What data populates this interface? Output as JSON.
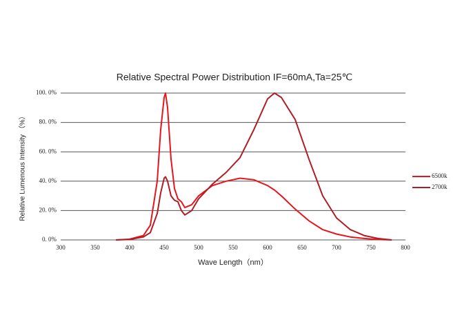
{
  "chart_data": {
    "type": "line",
    "title": "Relative Spectral Power Distribution    IF=60mA,Ta=25℃",
    "x_label": "Wave Length（nm）",
    "y_label": "Relative Lumenous Intensity （%）",
    "x": [
      380,
      400,
      420,
      430,
      440,
      445,
      450,
      452,
      455,
      460,
      465,
      470,
      475,
      480,
      490,
      500,
      520,
      540,
      560,
      580,
      600,
      610,
      620,
      640,
      660,
      680,
      700,
      720,
      740,
      760,
      780
    ],
    "series": [
      {
        "name": "6500k",
        "color": "#e8141c",
        "values": [
          0,
          0.5,
          3,
          10,
          40,
          75,
          97,
          100,
          90,
          55,
          35,
          28,
          26,
          22,
          24,
          30,
          37,
          40,
          42,
          41,
          37,
          34,
          30,
          21,
          13,
          7,
          4,
          2,
          1,
          0.3,
          0
        ]
      },
      {
        "name": "2700k",
        "color": "#b01c24",
        "values": [
          0,
          0.3,
          2,
          5,
          18,
          32,
          42,
          43,
          40,
          30,
          27,
          26,
          20,
          17,
          20,
          28,
          38,
          46,
          56,
          75,
          96,
          100,
          97,
          82,
          55,
          30,
          15,
          7,
          3,
          1,
          0
        ]
      }
    ],
    "xlim": [
      300,
      800
    ],
    "xticks": [
      300,
      350,
      400,
      450,
      500,
      550,
      600,
      650,
      700,
      750,
      800
    ],
    "ylim": [
      0,
      100
    ],
    "yticks": [
      {
        "value": 0,
        "label": "0. 0%"
      },
      {
        "value": 20,
        "label": "20. 0%"
      },
      {
        "value": 40,
        "label": "40. 0%"
      },
      {
        "value": 60,
        "label": "60. 0%"
      },
      {
        "value": 80,
        "label": "80. 0%"
      },
      {
        "value": 100,
        "label": "100. 0%"
      }
    ],
    "grid": true,
    "legend": "right"
  }
}
